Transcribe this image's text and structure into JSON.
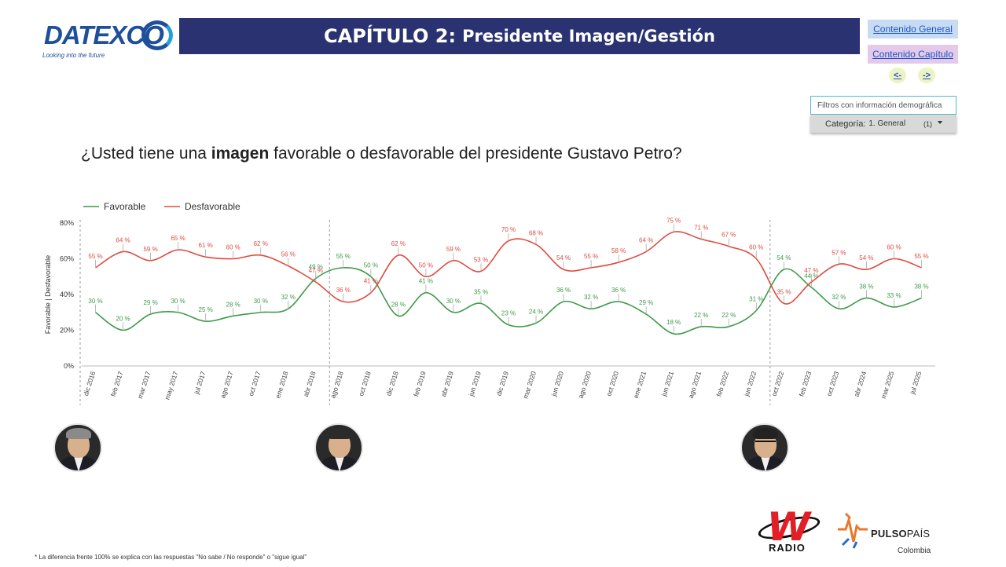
{
  "logo": {
    "text": "DATEXCO",
    "tagline": "Looking into the future"
  },
  "header": {
    "chapter": "CAPÍTULO 2:",
    "subtitle": "Presidente Imagen/Gestión"
  },
  "nav": {
    "general": "Contenido General",
    "chapter": "Contenido Capítulo",
    "prev": "<-",
    "next": "->"
  },
  "filters": {
    "placeholder": "Filtros con información demográfica",
    "category_label": "Categoría:",
    "category_value": "1. General",
    "category_count": "(1)"
  },
  "question": {
    "before": "¿Usted tiene una ",
    "bold": "imagen",
    "after": " favorable o desfavorable del presidente Gustavo Petro?"
  },
  "chart_data": {
    "type": "line",
    "title": "",
    "ylabel": "Favorable | Desfavorable",
    "ylim": [
      0,
      80
    ],
    "yticks": [
      "0%",
      "20%",
      "40%",
      "60%",
      "80%"
    ],
    "legend_position": "top-left",
    "grid": false,
    "categories": [
      "dic 2016",
      "feb 2017",
      "mar 2017",
      "may 2017",
      "jul 2017",
      "ago 2017",
      "oct 2017",
      "ene 2018",
      "abr 2018",
      "ago 2018",
      "oct 2018",
      "dic 2018",
      "feb 2019",
      "abr 2019",
      "jun 2019",
      "dic 2019",
      "mar 2020",
      "jun 2020",
      "ago 2020",
      "oct 2020",
      "ene 2021",
      "jun 2021",
      "ago 2021",
      "feb 2022",
      "jun 2022",
      "oct 2022",
      "feb 2023",
      "oct 2023",
      "abr 2024",
      "mar 2025",
      "jul 2025"
    ],
    "dividers_after": [
      "abr 2018",
      "jun 2022"
    ],
    "series": [
      {
        "name": "Favorable",
        "color": "#3e9a48",
        "values": [
          30,
          20,
          29,
          30,
          25,
          28,
          30,
          32,
          49,
          55,
          50,
          28,
          41,
          30,
          35,
          23,
          24,
          36,
          32,
          36,
          29,
          18,
          22,
          22,
          31,
          54,
          44,
          32,
          38,
          33,
          38
        ],
        "labels": [
          "30 %",
          "20 %",
          "29 %",
          "30 %",
          "25 %",
          "28 %",
          "30 %",
          "32 %",
          "49 %",
          "55 %",
          "50 %",
          "28 %",
          "41 %",
          "30 %",
          "35 %",
          "23 %",
          "24 %",
          "36 %",
          "32 %",
          "36 %",
          "29 %",
          "18 %",
          "22 %",
          "22 %",
          "31 %",
          "54 %",
          "44 %",
          "32 %",
          "38 %",
          "33 %",
          "38 %"
        ]
      },
      {
        "name": "Desfavorable",
        "color": "#e04a3f",
        "values": [
          55,
          64,
          59,
          65,
          61,
          60,
          62,
          56,
          47,
          36,
          41,
          62,
          50,
          59,
          53,
          70,
          68,
          54,
          55,
          58,
          64,
          75,
          71,
          67,
          60,
          35,
          47,
          57,
          54,
          60,
          55
        ],
        "labels": [
          "55 %",
          "64 %",
          "59 %",
          "65 %",
          "61 %",
          "60 %",
          "62 %",
          "56 %",
          "47 %",
          "36 %",
          "41 %",
          "62 %",
          "50 %",
          "59 %",
          "53 %",
          "70 %",
          "68 %",
          "54 %",
          "55 %",
          "58 %",
          "64 %",
          "75 %",
          "71 %",
          "67 %",
          "60 %",
          "35 %",
          "47 %",
          "57 %",
          "54 %",
          "60 %",
          "55 %"
        ]
      }
    ]
  },
  "portraits": [
    "santos-portrait",
    "duque-portrait",
    "petro-portrait"
  ],
  "footnote": "* La diferencia frente 100% se explica con las respuestas \"No sabe / No responde\" o \"sigue igual\"",
  "sponsors": {
    "wradio": "RADIO",
    "pulso_bold": "PULSO",
    "pulso_light": "PAÍS",
    "pulso_country": "Colombia"
  }
}
